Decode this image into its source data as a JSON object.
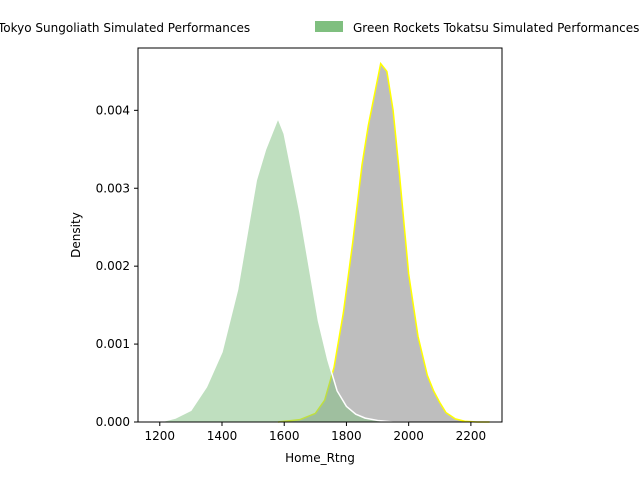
{
  "chart_data": {
    "type": "area",
    "title": "",
    "xlabel": "Home_Rtng",
    "ylabel": "Density",
    "xlim": [
      1130,
      2300
    ],
    "ylim": [
      0,
      0.0048
    ],
    "x_ticks": [
      1200,
      1400,
      1600,
      1800,
      2000,
      2200
    ],
    "y_ticks": [
      0.0,
      0.001,
      0.002,
      0.003,
      0.004
    ],
    "x_tick_labels": [
      "1200",
      "1400",
      "1600",
      "1800",
      "2000",
      "2200"
    ],
    "y_tick_labels": [
      "0.000",
      "0.001",
      "0.002",
      "0.003",
      "0.004"
    ],
    "grid": false,
    "legend_position": "top",
    "series": [
      {
        "name": "Tokyo Sungoliath Simulated Performances",
        "fill_color": "#bebebe",
        "fill_opacity": 1.0,
        "line_color": "#ffff00",
        "x": [
          1580,
          1650,
          1700,
          1730,
          1760,
          1790,
          1820,
          1850,
          1870,
          1890,
          1910,
          1930,
          1950,
          1970,
          2000,
          2030,
          2060,
          2080,
          2100,
          2120,
          2150,
          2180,
          2220,
          2260
        ],
        "y": [
          0.0,
          3e-05,
          0.00011,
          0.00028,
          0.0007,
          0.0014,
          0.0023,
          0.0033,
          0.0038,
          0.0042,
          0.0046,
          0.0045,
          0.004,
          0.0032,
          0.0019,
          0.0011,
          0.0006,
          0.0004,
          0.00025,
          0.00012,
          4e-05,
          1e-05,
          0.0,
          0.0
        ]
      },
      {
        "name": "Green Rockets Tokatsu Simulated Performances",
        "fill_color": "#7fbf7f",
        "fill_opacity": 0.5,
        "line_color": "#ffffff",
        "x": [
          1200,
          1250,
          1300,
          1350,
          1400,
          1450,
          1480,
          1510,
          1540,
          1560,
          1580,
          1600,
          1620,
          1650,
          1680,
          1710,
          1740,
          1770,
          1800,
          1830,
          1860,
          1900,
          1950,
          2000
        ],
        "y": [
          0.0,
          5e-05,
          0.00015,
          0.00045,
          0.0009,
          0.0017,
          0.0024,
          0.0031,
          0.0035,
          0.0037,
          0.0039,
          0.0037,
          0.0033,
          0.0027,
          0.002,
          0.0013,
          0.0008,
          0.0004,
          0.0002,
          0.0001,
          5e-05,
          2e-05,
          0.0,
          0.0
        ]
      }
    ]
  }
}
